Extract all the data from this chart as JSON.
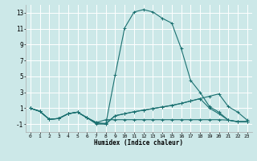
{
  "title": "",
  "xlabel": "Humidex (Indice chaleur)",
  "bg_color": "#cce8e8",
  "grid_color": "#ffffff",
  "line_color": "#1a7070",
  "xlim": [
    -0.5,
    23.5
  ],
  "ylim": [
    -2.0,
    14.0
  ],
  "xticks": [
    0,
    1,
    2,
    3,
    4,
    5,
    6,
    7,
    8,
    9,
    10,
    11,
    12,
    13,
    14,
    15,
    16,
    17,
    18,
    19,
    20,
    21,
    22,
    23
  ],
  "yticks": [
    -1,
    1,
    3,
    5,
    7,
    9,
    11,
    13
  ],
  "series": [
    {
      "x": [
        0,
        1,
        2,
        3,
        4,
        5,
        6,
        7,
        8,
        9,
        10,
        11,
        12,
        13,
        14,
        15,
        16,
        17,
        18,
        19,
        20,
        21,
        22,
        23
      ],
      "y": [
        1.0,
        0.6,
        -0.4,
        -0.3,
        0.3,
        0.5,
        -0.2,
        -0.8,
        -1.0,
        5.2,
        11.1,
        13.1,
        13.4,
        13.1,
        12.3,
        11.7,
        8.5,
        4.5,
        3.0,
        1.2,
        0.5,
        -0.5,
        -0.7,
        -0.7
      ]
    },
    {
      "x": [
        0,
        1,
        2,
        3,
        4,
        5,
        6,
        7,
        8,
        9,
        10,
        11,
        12,
        13,
        14,
        15,
        16,
        17,
        18,
        19,
        20,
        21,
        22,
        23
      ],
      "y": [
        1.0,
        0.6,
        -0.4,
        -0.3,
        0.3,
        0.5,
        -0.2,
        -0.8,
        -0.45,
        -0.45,
        -0.45,
        -0.45,
        -0.45,
        -0.45,
        -0.45,
        -0.45,
        -0.45,
        -0.45,
        -0.45,
        -0.45,
        -0.45,
        -0.5,
        -0.7,
        -0.7
      ]
    },
    {
      "x": [
        0,
        1,
        2,
        3,
        4,
        5,
        6,
        7,
        8,
        9,
        10,
        11,
        12,
        13,
        14,
        15,
        16,
        17,
        18,
        19,
        20,
        21,
        22,
        23
      ],
      "y": [
        1.0,
        0.6,
        -0.4,
        -0.3,
        0.3,
        0.5,
        -0.2,
        -0.9,
        -0.9,
        0.05,
        0.3,
        0.55,
        0.75,
        0.95,
        1.15,
        1.35,
        1.6,
        1.9,
        2.2,
        2.5,
        2.8,
        1.2,
        0.5,
        -0.5
      ]
    },
    {
      "x": [
        0,
        1,
        2,
        3,
        4,
        5,
        6,
        7,
        8,
        9,
        10,
        11,
        12,
        13,
        14,
        15,
        16,
        17,
        18,
        19,
        20,
        21,
        22,
        23
      ],
      "y": [
        1.0,
        0.6,
        -0.4,
        -0.3,
        0.3,
        0.5,
        -0.2,
        -1.0,
        -1.0,
        0.05,
        0.3,
        0.55,
        0.75,
        0.95,
        1.15,
        1.35,
        1.6,
        1.9,
        2.2,
        1.0,
        0.3,
        -0.5,
        -0.7,
        -0.7
      ]
    }
  ]
}
